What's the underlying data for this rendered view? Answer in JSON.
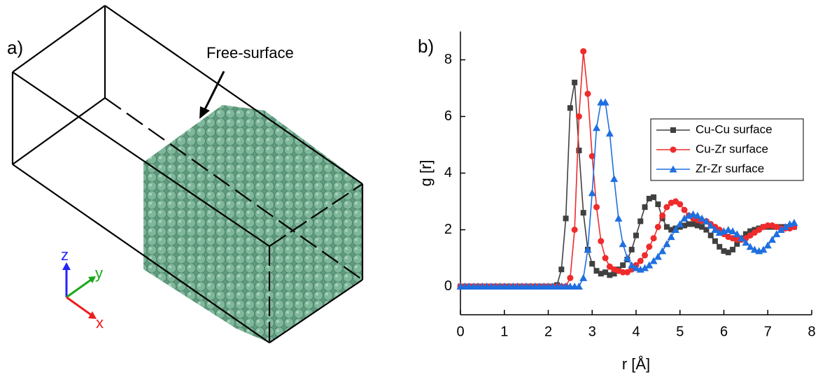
{
  "panel_a": {
    "label": "a)",
    "annotation": "Free-surface",
    "axes": [
      "z",
      "y",
      "x"
    ]
  },
  "chart_data": {
    "type": "line",
    "panel_label": "b)",
    "xlabel": "r [Å]",
    "ylabel": "g [r]",
    "xlim": [
      0,
      8
    ],
    "ylim": [
      -1,
      9
    ],
    "xticks": [
      0,
      1,
      2,
      3,
      4,
      5,
      6,
      7,
      8
    ],
    "yticks": [
      0,
      2,
      4,
      6,
      8
    ],
    "legend": "upper-right",
    "x": [
      0,
      0.1,
      0.2,
      0.3,
      0.4,
      0.5,
      0.6,
      0.7,
      0.8,
      0.9,
      1,
      1.1,
      1.2,
      1.3,
      1.4,
      1.5,
      1.6,
      1.7,
      1.8,
      1.9,
      2,
      2.1,
      2.2,
      2.3,
      2.4,
      2.5,
      2.6,
      2.7,
      2.8,
      2.9,
      3,
      3.1,
      3.2,
      3.3,
      3.4,
      3.5,
      3.6,
      3.7,
      3.8,
      3.9,
      4,
      4.1,
      4.2,
      4.3,
      4.4,
      4.5,
      4.6,
      4.7,
      4.8,
      4.9,
      5,
      5.1,
      5.2,
      5.3,
      5.4,
      5.5,
      5.6,
      5.7,
      5.8,
      5.9,
      6,
      6.1,
      6.2,
      6.3,
      6.4,
      6.5,
      6.6,
      6.7,
      6.8,
      6.9,
      7,
      7.1,
      7.2,
      7.3,
      7.4,
      7.5,
      7.6
    ],
    "series": [
      {
        "name": "Cu-Cu surface",
        "color": "#404040",
        "marker": "square",
        "values": [
          0,
          0,
          0,
          0,
          0,
          0,
          0,
          0,
          0,
          0,
          0,
          0,
          0,
          0,
          0,
          0,
          0,
          0,
          0,
          0,
          0,
          0,
          0.05,
          0.6,
          2.4,
          6.3,
          7.2,
          4.8,
          2.6,
          1.3,
          0.8,
          0.55,
          0.45,
          0.5,
          0.4,
          0.45,
          0.6,
          0.75,
          0.95,
          1.3,
          1.8,
          2.3,
          2.8,
          3.1,
          3.15,
          2.9,
          2.4,
          2.1,
          2.0,
          2.05,
          2.1,
          2.15,
          2.2,
          2.2,
          2.15,
          2.1,
          2.0,
          1.8,
          1.6,
          1.4,
          1.25,
          1.2,
          1.3,
          1.5,
          1.7,
          1.85,
          1.95,
          2.0,
          2.05,
          2.1,
          2.1,
          2.1,
          2.1,
          2.1,
          2.1,
          2.1,
          2.1
        ]
      },
      {
        "name": "Cu-Zr surface",
        "color": "#ef2b2b",
        "marker": "circle",
        "values": [
          0,
          0,
          0,
          0,
          0,
          0,
          0,
          0,
          0,
          0,
          0,
          0,
          0,
          0,
          0,
          0,
          0,
          0,
          0,
          0,
          0,
          0,
          0,
          0,
          0,
          0.3,
          2.0,
          6.0,
          8.3,
          6.8,
          4.6,
          2.8,
          1.6,
          1.0,
          0.7,
          0.6,
          0.55,
          0.5,
          0.5,
          0.6,
          0.75,
          0.9,
          1.1,
          1.4,
          1.7,
          2.1,
          2.5,
          2.8,
          2.95,
          3.0,
          2.9,
          2.7,
          2.5,
          2.4,
          2.35,
          2.3,
          2.3,
          2.2,
          2.1,
          2.0,
          1.85,
          1.75,
          1.7,
          1.65,
          1.65,
          1.7,
          1.8,
          1.9,
          2.0,
          2.1,
          2.15,
          2.15,
          2.1,
          2.05,
          2.05,
          2.05,
          2.1
        ]
      },
      {
        "name": "Zr-Zr surface",
        "color": "#1f6fe0",
        "marker": "triangle",
        "values": [
          0,
          0,
          0,
          0,
          0,
          0,
          0,
          0,
          0,
          0,
          0,
          0,
          0,
          0,
          0,
          0,
          0,
          0,
          0,
          0,
          0,
          0,
          0,
          0,
          0,
          0,
          0,
          0,
          0.3,
          1.3,
          3.3,
          5.6,
          6.5,
          6.5,
          5.4,
          3.8,
          2.4,
          1.5,
          1.0,
          0.75,
          0.65,
          0.6,
          0.65,
          0.75,
          0.9,
          1.05,
          1.25,
          1.5,
          1.75,
          2.0,
          2.2,
          2.4,
          2.5,
          2.55,
          2.5,
          2.4,
          2.3,
          2.15,
          2.0,
          1.9,
          1.95,
          2.0,
          1.95,
          1.85,
          1.7,
          1.55,
          1.4,
          1.3,
          1.25,
          1.3,
          1.45,
          1.65,
          1.85,
          2.0,
          2.1,
          2.2,
          2.25
        ]
      }
    ]
  }
}
